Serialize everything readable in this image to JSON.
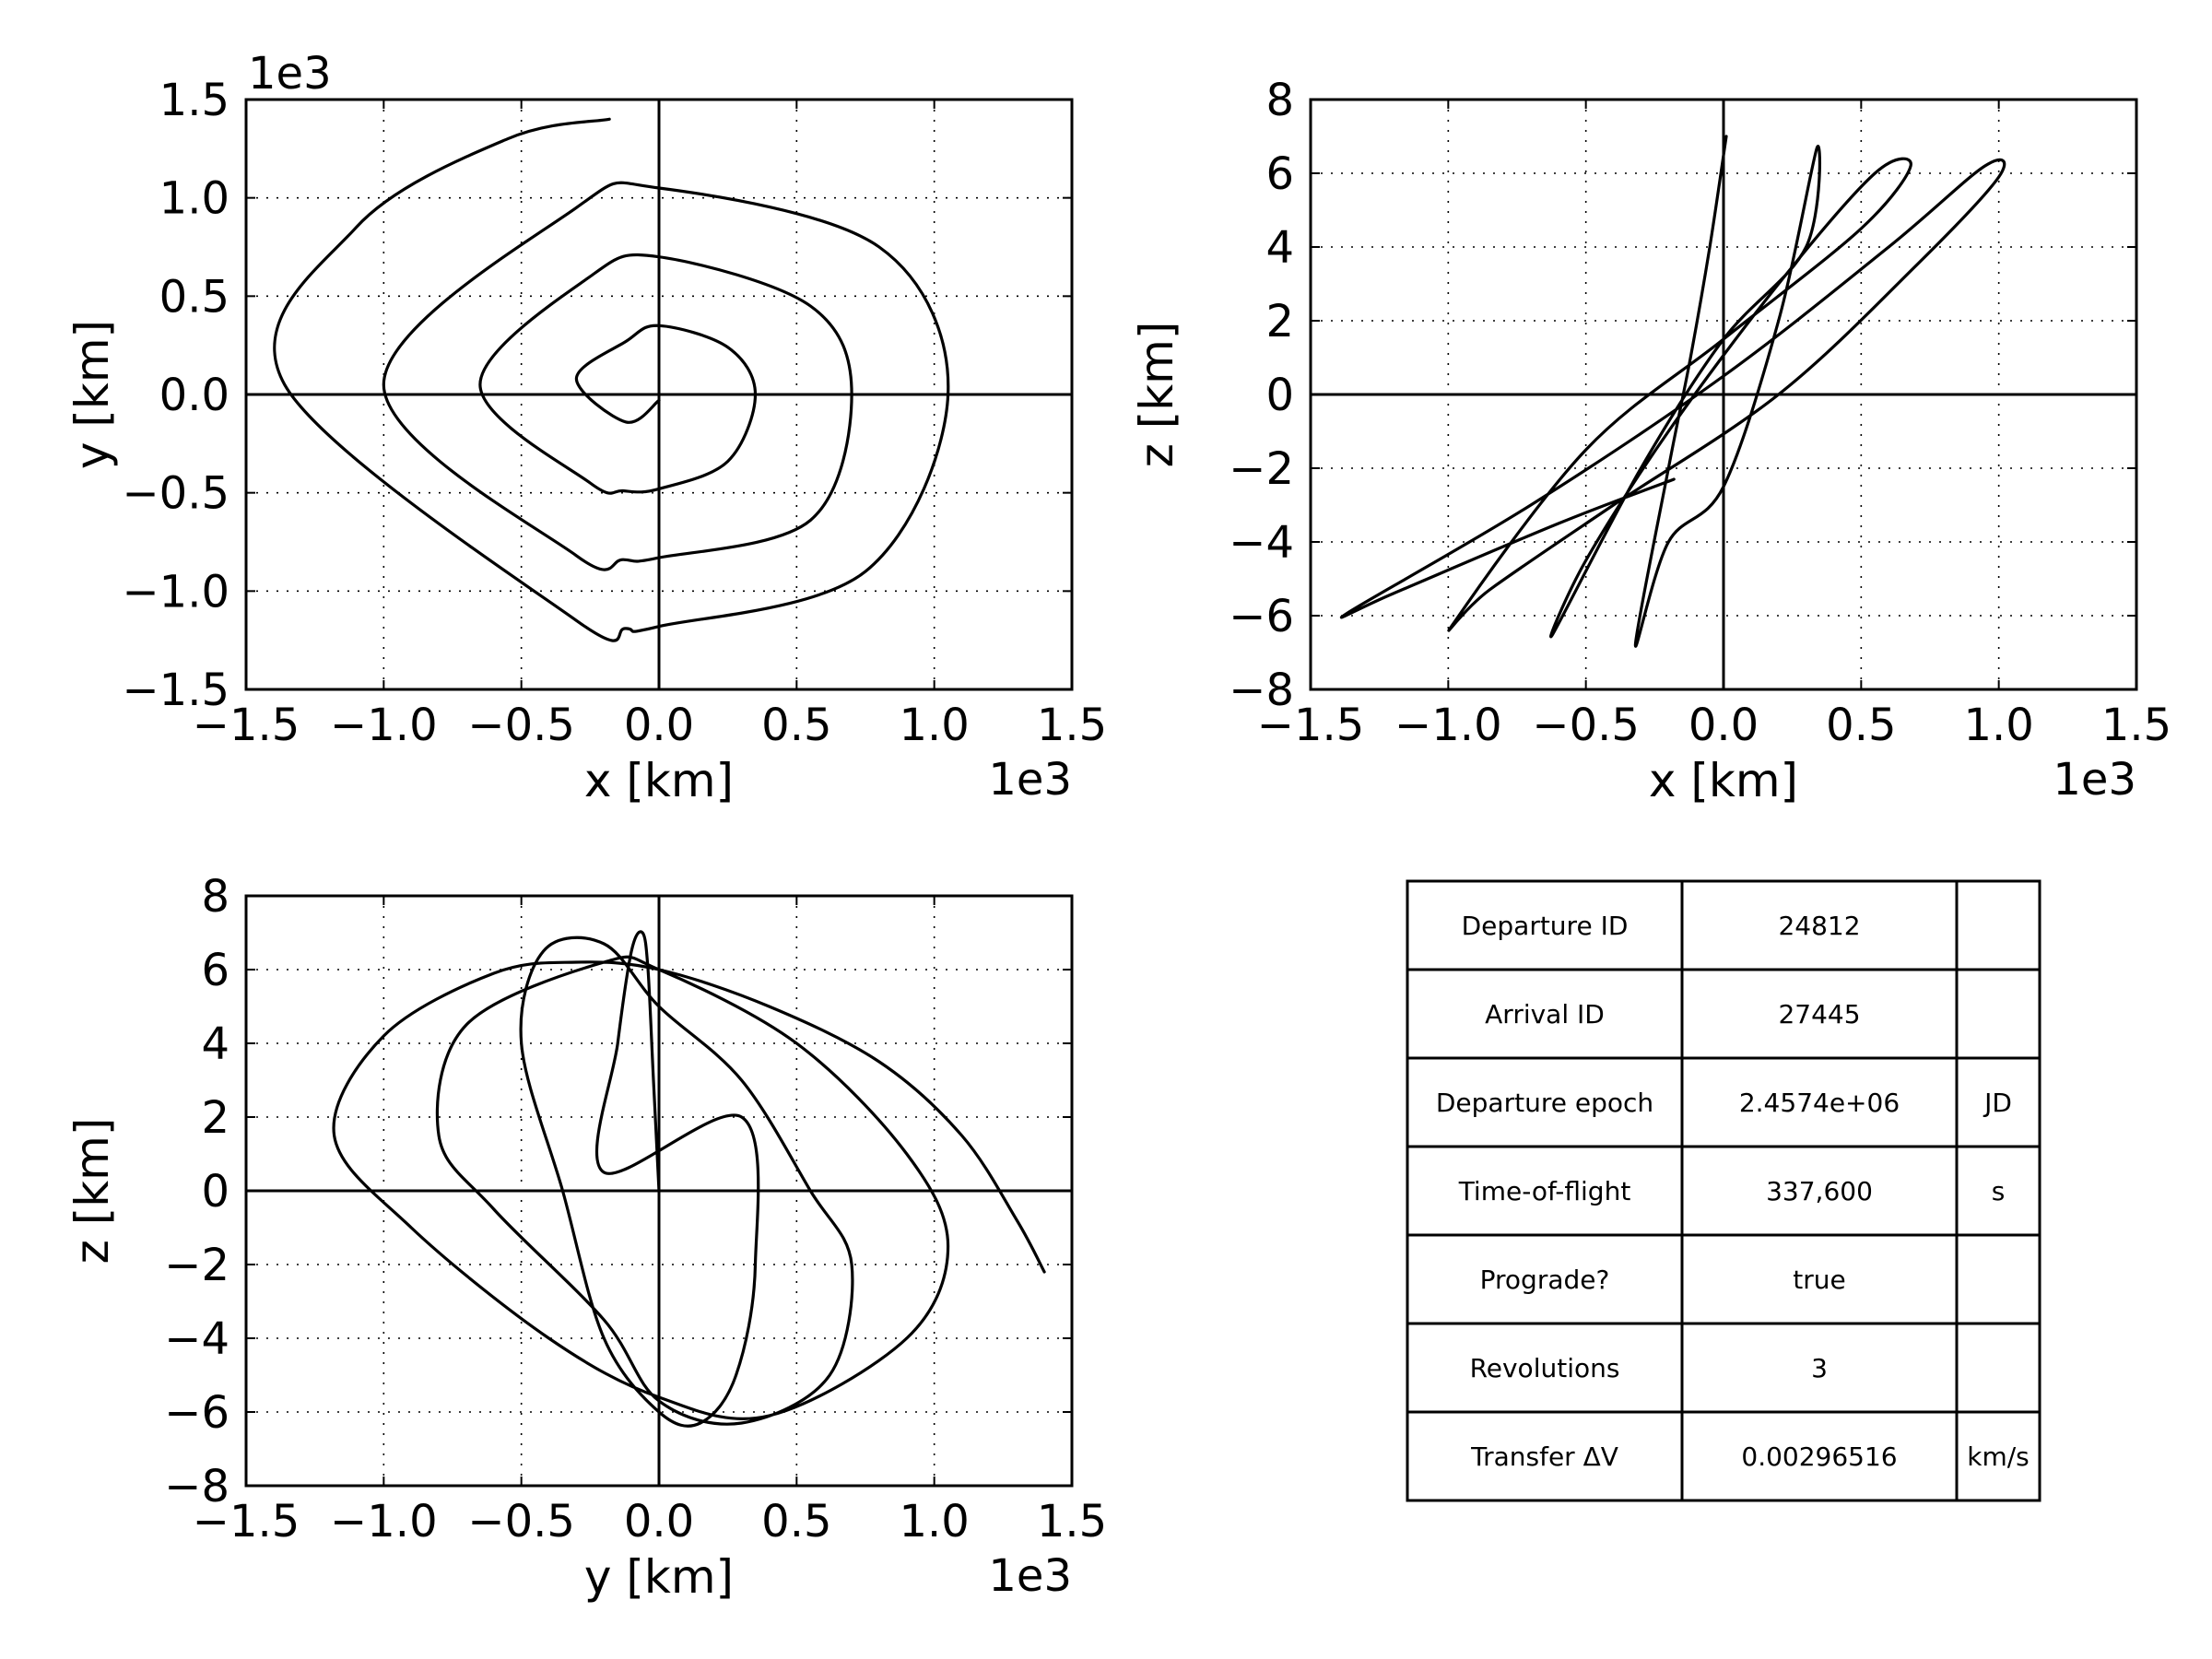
{
  "chart_data": [
    {
      "type": "line",
      "id": "xy",
      "xlabel": "x [km]",
      "ylabel": "y [km]",
      "xlim": [
        -1.5,
        1.5
      ],
      "ylim": [
        -1.5,
        1.5
      ],
      "x_ticks": [
        "−1.5",
        "−1.0",
        "−0.5",
        "0.0",
        "0.5",
        "1.0",
        "1.5"
      ],
      "y_ticks": [
        "−1.5",
        "−1.0",
        "−0.5",
        "0.0",
        "0.5",
        "1.0",
        "1.5"
      ],
      "x_tick_values": [
        -1.5,
        -1.0,
        -0.5,
        0.0,
        0.5,
        1.0,
        1.5
      ],
      "y_tick_values": [
        -1.5,
        -1.0,
        -0.5,
        0.0,
        0.5,
        1.0,
        1.5
      ],
      "x_offset": "1e3",
      "y_offset": "1e3",
      "grid": true,
      "series": [
        {
          "x": [
            0.0,
            -0.12,
            -0.3,
            -0.12,
            0.0,
            0.25,
            0.35,
            0.25,
            0.0,
            -0.13,
            -0.25,
            -0.65,
            -0.25,
            0.0,
            0.55,
            0.7,
            0.55,
            0.0,
            -0.13,
            -0.3,
            -1.0,
            -0.3,
            0.0,
            0.8,
            1.05,
            0.75,
            0.0,
            -0.12,
            -0.3,
            -1.36,
            -1.1,
            -0.55,
            -0.18
          ],
          "y": [
            -0.03,
            -0.14,
            0.08,
            0.27,
            0.35,
            0.24,
            0.0,
            -0.34,
            -0.48,
            -0.49,
            -0.45,
            0.05,
            0.6,
            0.7,
            0.45,
            0.0,
            -0.64,
            -0.83,
            -0.84,
            -0.82,
            0.05,
            0.95,
            1.05,
            0.75,
            0.0,
            -0.9,
            -1.18,
            -1.19,
            -1.15,
            0.05,
            0.85,
            1.3,
            1.4
          ]
        }
      ]
    },
    {
      "type": "line",
      "id": "xz",
      "xlabel": "x [km]",
      "ylabel": "z [km]",
      "xlim": [
        -1.5,
        1.5
      ],
      "ylim": [
        -8,
        8
      ],
      "x_ticks": [
        "−1.5",
        "−1.0",
        "−0.5",
        "0.0",
        "0.5",
        "1.0",
        "1.5"
      ],
      "y_ticks": [
        "−8",
        "−6",
        "−4",
        "−2",
        "0",
        "2",
        "4",
        "6",
        "8"
      ],
      "x_tick_values": [
        -1.5,
        -1.0,
        -0.5,
        0.0,
        0.5,
        1.0,
        1.5
      ],
      "y_tick_values": [
        -8,
        -6,
        -4,
        -2,
        0,
        2,
        4,
        6,
        8
      ],
      "x_offset": "1e3",
      "grid": true,
      "series": [
        {
          "x": [
            0.01,
            -0.05,
            -0.12,
            -0.2,
            -0.32,
            -0.2,
            0.0,
            0.2,
            0.34,
            0.3,
            0.0,
            -0.3,
            -0.62,
            -0.5,
            -0.2,
            0.2,
            0.55,
            0.68,
            0.5,
            0.0,
            -0.5,
            -0.98,
            -0.85,
            -0.4,
            0.2,
            0.7,
            1.0,
            0.95,
            0.6,
            0.0,
            -0.7,
            -1.36,
            -1.2,
            -0.6,
            -0.18
          ],
          "y": [
            7.0,
            4.0,
            1.0,
            -2.0,
            -6.8,
            -4.0,
            -2.5,
            2.0,
            6.7,
            4.0,
            1.5,
            -2.0,
            -6.5,
            -4.5,
            -1.0,
            3.0,
            6.0,
            6.2,
            4.5,
            1.5,
            -1.5,
            -6.2,
            -5.3,
            -3.0,
            0.0,
            3.5,
            5.9,
            6.2,
            4.0,
            0.5,
            -3.0,
            -5.9,
            -5.4,
            -3.5,
            -2.3
          ]
        }
      ]
    },
    {
      "type": "line",
      "id": "yz",
      "xlabel": "y [km]",
      "ylabel": "z [km]",
      "xlim": [
        -1.5,
        1.5
      ],
      "ylim": [
        -8,
        8
      ],
      "x_ticks": [
        "−1.5",
        "−1.0",
        "−0.5",
        "0.0",
        "0.5",
        "1.0",
        "1.5"
      ],
      "y_ticks": [
        "−8",
        "−6",
        "−4",
        "−2",
        "0",
        "2",
        "4",
        "6",
        "8"
      ],
      "x_tick_values": [
        -1.5,
        -1.0,
        -0.5,
        0.0,
        0.5,
        1.0,
        1.5
      ],
      "y_tick_values": [
        -8,
        -6,
        -4,
        -2,
        0,
        2,
        4,
        6,
        8
      ],
      "x_offset": "1e3",
      "grid": true,
      "series": [
        {
          "x": [
            0.0,
            -0.02,
            -0.04,
            -0.06,
            -0.1,
            -0.15,
            -0.2,
            0.3,
            0.35,
            0.28,
            0.15,
            0.0,
            -0.2,
            -0.35,
            -0.5,
            -0.42,
            -0.2,
            0.0,
            0.3,
            0.55,
            0.7,
            0.62,
            0.3,
            0.0,
            -0.2,
            -0.6,
            -0.8,
            -0.7,
            -0.2,
            0.0,
            0.5,
            0.9,
            1.05,
            0.9,
            0.4,
            0.0,
            -0.4,
            -0.9,
            -1.18,
            -1.0,
            -0.6,
            -0.3,
            0.0,
            0.4,
            0.8,
            1.1,
            1.3,
            1.4
          ],
          "y": [
            0.0,
            3.0,
            6.0,
            7.0,
            6.5,
            4.0,
            0.5,
            2.0,
            -2.0,
            -5.0,
            -6.3,
            -6.0,
            -4.0,
            0.0,
            4.0,
            6.5,
            6.7,
            5.0,
            3.0,
            0.0,
            -2.0,
            -5.0,
            -6.3,
            -5.7,
            -3.5,
            -0.5,
            1.5,
            4.5,
            6.2,
            6.0,
            4.0,
            1.0,
            -1.5,
            -4.0,
            -6.1,
            -5.6,
            -4.0,
            -1.0,
            1.5,
            4.2,
            5.9,
            6.2,
            6.0,
            5.0,
            3.5,
            1.5,
            -0.8,
            -2.2
          ]
        }
      ]
    },
    {
      "type": "table",
      "rows": [
        [
          "Departure ID",
          "24812",
          ""
        ],
        [
          "Arrival ID",
          "27445",
          ""
        ],
        [
          "Departure epoch",
          "2.4574e+06",
          "JD"
        ],
        [
          "Time-of-flight",
          "337,600",
          "s"
        ],
        [
          "Prograde?",
          "true",
          ""
        ],
        [
          "Revolutions",
          "3",
          ""
        ],
        [
          "Transfer ΔV",
          "0.00296516",
          "km/s"
        ]
      ]
    }
  ]
}
